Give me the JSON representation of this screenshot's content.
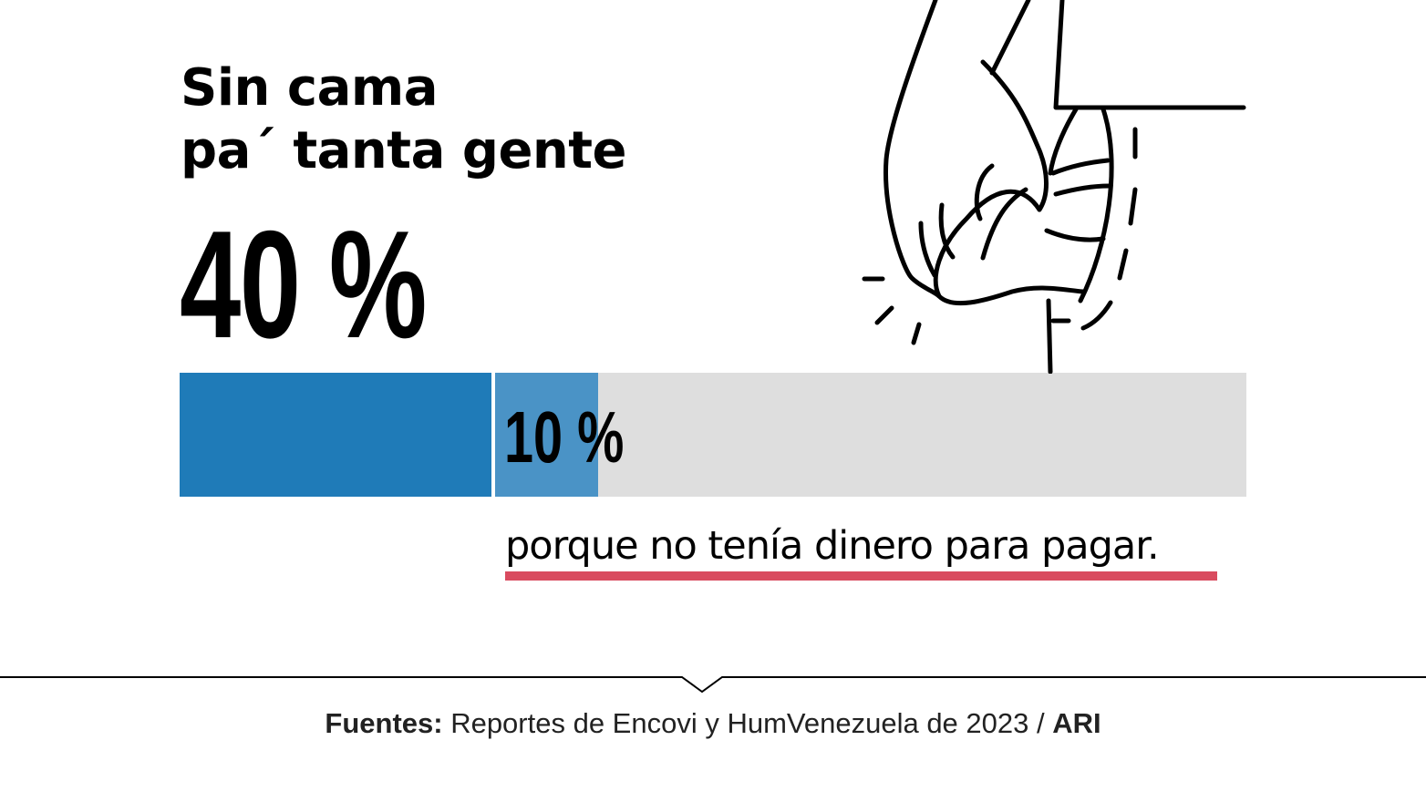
{
  "title": {
    "line1": "Sin cama",
    "line2": "pa´ tanta gente"
  },
  "headline_percent": "40 %",
  "secondary_percent": "10 %",
  "bar": {
    "main_value": 0.4,
    "sub_value": 0.1,
    "main_color": "#1f7bb8",
    "sub_color": "#4a93c6",
    "track_color": "#dedede"
  },
  "caption": "porque no tenía dinero para pagar.",
  "caption_underline_color": "#d94b5f",
  "source": {
    "label": "Fuentes:",
    "text": " Reportes de Encovi y HumVenezuela de 2023 / ",
    "org": "ARI"
  },
  "illustration_icon": "hand-pulling-empty-pocket-icon"
}
